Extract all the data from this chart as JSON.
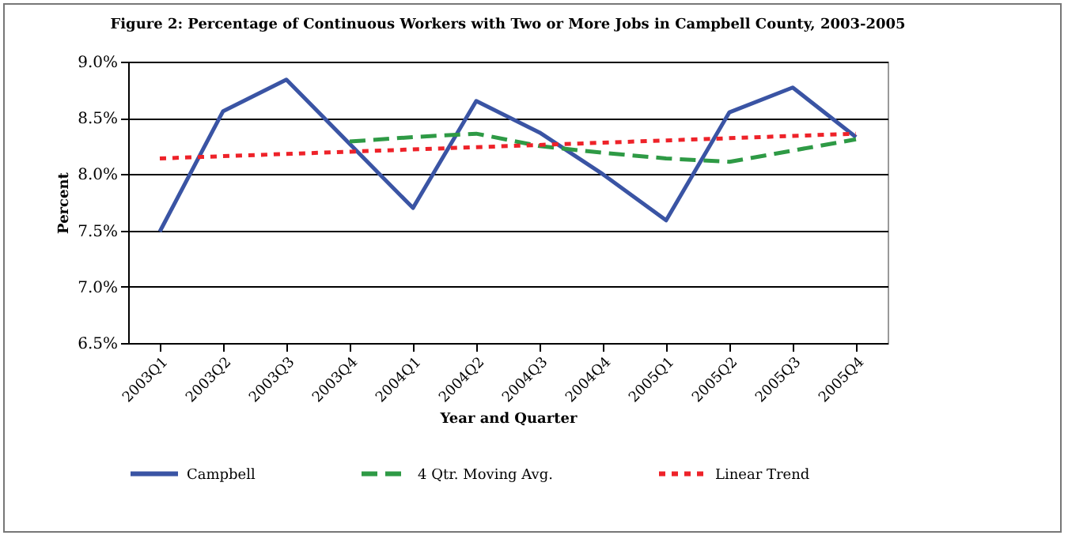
{
  "chart_data": {
    "type": "line",
    "title": "Figure 2: Percentage of Continuous Workers with Two or More Jobs in Campbell County, 2003-2005",
    "xlabel": "Year and Quarter",
    "ylabel": "Percent",
    "categories": [
      "2003Q1",
      "2003Q2",
      "2003Q3",
      "2003Q4",
      "2004Q1",
      "2004Q2",
      "2004Q3",
      "2004Q4",
      "2005Q1",
      "2005Q2",
      "2005Q3",
      "2005Q4"
    ],
    "series": [
      {
        "name": "Campbell",
        "color": "#3a54a4",
        "line_style": "solid",
        "values": [
          7.49,
          8.56,
          8.84,
          8.27,
          7.7,
          8.65,
          8.37,
          8.0,
          7.59,
          8.55,
          8.77,
          8.33
        ]
      },
      {
        "name": "4 Qtr. Moving Avg.",
        "color": "#2e9a45",
        "line_style": "dashed",
        "values": [
          null,
          null,
          null,
          8.29,
          8.33,
          8.36,
          8.25,
          8.19,
          8.14,
          8.11,
          8.21,
          8.31
        ]
      },
      {
        "name": "Linear Trend",
        "color": "#ee2229",
        "line_style": "dotted",
        "values": [
          8.14,
          8.16,
          8.18,
          8.2,
          8.22,
          8.24,
          8.26,
          8.28,
          8.3,
          8.32,
          8.34,
          8.36
        ]
      }
    ],
    "ylim": [
      6.5,
      9.0
    ],
    "yticks": [
      {
        "value": 6.5,
        "label": "6.5%"
      },
      {
        "value": 7.0,
        "label": "7.0%"
      },
      {
        "value": 7.5,
        "label": "7.5%"
      },
      {
        "value": 8.0,
        "label": "8.0%"
      },
      {
        "value": 8.5,
        "label": "8.5%"
      },
      {
        "value": 9.0,
        "label": "9.0%"
      }
    ],
    "grid": "y",
    "legend": "bottom",
    "marker": "none"
  }
}
